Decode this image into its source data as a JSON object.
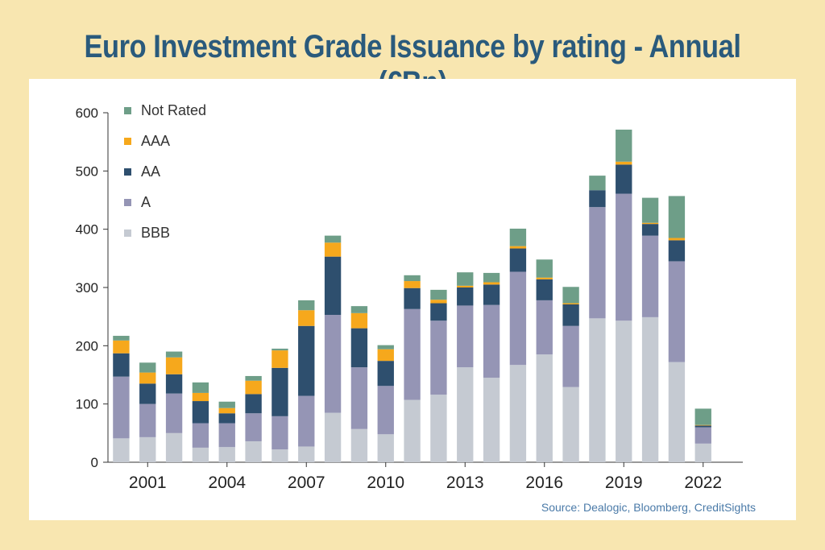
{
  "title": "Euro Investment Grade Issuance by rating - Annual (€Bn)",
  "source": "Source: Dealogic, Bloomberg, CreditSights",
  "chart_data": {
    "type": "bar",
    "stacked": true,
    "title": "Euro Investment Grade Issuance by rating - Annual (€Bn)",
    "xlabel": "",
    "ylabel": "",
    "ylim": [
      0,
      600
    ],
    "yticks": [
      0,
      100,
      200,
      300,
      400,
      500,
      600
    ],
    "xtick_labels": [
      "2001",
      "2004",
      "2007",
      "2010",
      "2013",
      "2016",
      "2019",
      "2022"
    ],
    "grid": false,
    "legend_position": "top-left",
    "categories": [
      "2000",
      "2001",
      "2002",
      "2003",
      "2004",
      "2005",
      "2006",
      "2007",
      "2008",
      "2009",
      "2010",
      "2011",
      "2012",
      "2013",
      "2014",
      "2015",
      "2016",
      "2017",
      "2018",
      "2019",
      "2020",
      "2021",
      "2022",
      "2023"
    ],
    "series": [
      {
        "name": "BBB",
        "color": "#c5cad2",
        "values": [
          41,
          43,
          50,
          25,
          26,
          36,
          22,
          27,
          85,
          57,
          48,
          107,
          116,
          163,
          145,
          167,
          185,
          129,
          247,
          243,
          249,
          172,
          32,
          0
        ]
      },
      {
        "name": "A",
        "color": "#9595b5",
        "values": [
          106,
          57,
          68,
          42,
          41,
          48,
          57,
          87,
          168,
          106,
          83,
          156,
          127,
          106,
          125,
          160,
          93,
          105,
          191,
          218,
          140,
          173,
          28,
          0
        ]
      },
      {
        "name": "AA",
        "color": "#2e4f6e",
        "values": [
          40,
          35,
          33,
          38,
          17,
          33,
          83,
          120,
          100,
          67,
          43,
          36,
          30,
          31,
          35,
          40,
          36,
          37,
          29,
          50,
          20,
          36,
          3,
          0
        ]
      },
      {
        "name": "AAA",
        "color": "#f6a81c",
        "values": [
          22,
          19,
          29,
          14,
          9,
          23,
          30,
          27,
          24,
          26,
          20,
          12,
          6,
          3,
          4,
          4,
          3,
          2,
          0,
          5,
          2,
          4,
          1,
          0
        ]
      },
      {
        "name": "Not Rated",
        "color": "#6e9e88",
        "values": [
          8,
          17,
          10,
          18,
          11,
          8,
          3,
          17,
          12,
          12,
          7,
          10,
          17,
          23,
          16,
          30,
          31,
          28,
          25,
          55,
          43,
          72,
          28,
          0
        ]
      }
    ]
  }
}
